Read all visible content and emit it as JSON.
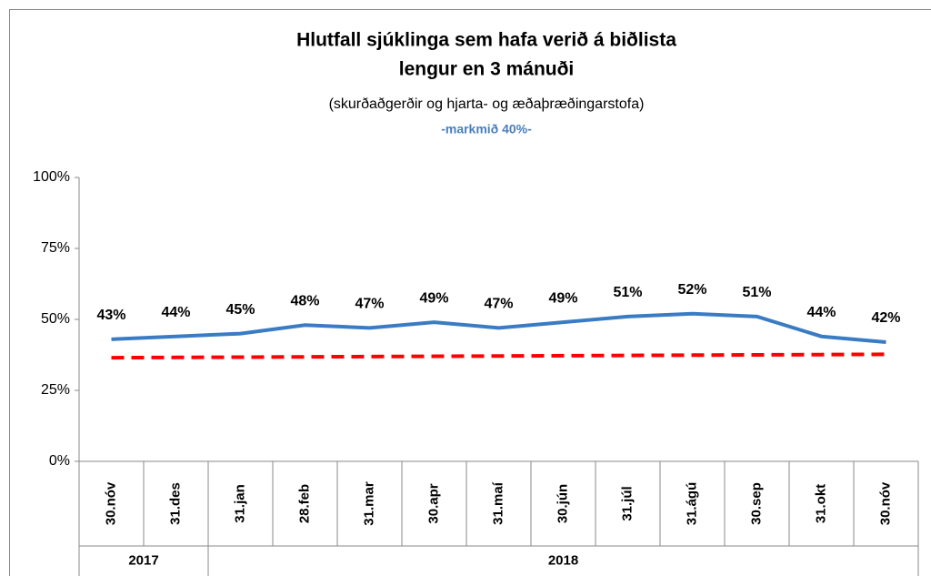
{
  "chart_data": {
    "type": "line",
    "title": [
      "Hlutfall sjúklinga sem hafa verið á biðlista",
      "lengur en 3 mánuði"
    ],
    "subtitle": "(skurðaðgerðir  og hjarta- og æðaþræðingarstofa)",
    "annotation": "-markmið 40%-",
    "categories": [
      "30.nóv",
      "31.des",
      "31.jan",
      "28.feb",
      "31.mar",
      "30.apr",
      "31.maí",
      "30.jún",
      "31.júl",
      "31.ágú",
      "30.sep",
      "31.okt",
      "30.nóv"
    ],
    "category_groups": [
      "2017",
      "2017",
      "2018",
      "2018",
      "2018",
      "2018",
      "2018",
      "2018",
      "2018",
      "2018",
      "2018",
      "2018",
      "2018"
    ],
    "series": [
      {
        "color": "#3a7cc4",
        "values": [
          43,
          44,
          45,
          48,
          47,
          49,
          47,
          49,
          51,
          52,
          51,
          44,
          42
        ],
        "value_labels": [
          "43%",
          "44%",
          "45%",
          "48%",
          "47%",
          "49%",
          "47%",
          "49%",
          "51%",
          "52%",
          "51%",
          "44%",
          "42%"
        ]
      },
      {
        "color": "#ff0000",
        "dashed": true,
        "values": [
          36.5,
          36.6,
          36.7,
          36.8,
          36.9,
          37.0,
          37.1,
          37.2,
          37.3,
          37.4,
          37.5,
          37.6,
          37.7
        ]
      }
    ],
    "ylim": [
      0,
      100
    ],
    "yticks": [
      {
        "value": 0,
        "label": "0%"
      },
      {
        "value": 25,
        "label": "25%"
      },
      {
        "value": 50,
        "label": "50%"
      },
      {
        "value": 75,
        "label": "75%"
      },
      {
        "value": 100,
        "label": "100%"
      }
    ],
    "grid": false
  }
}
